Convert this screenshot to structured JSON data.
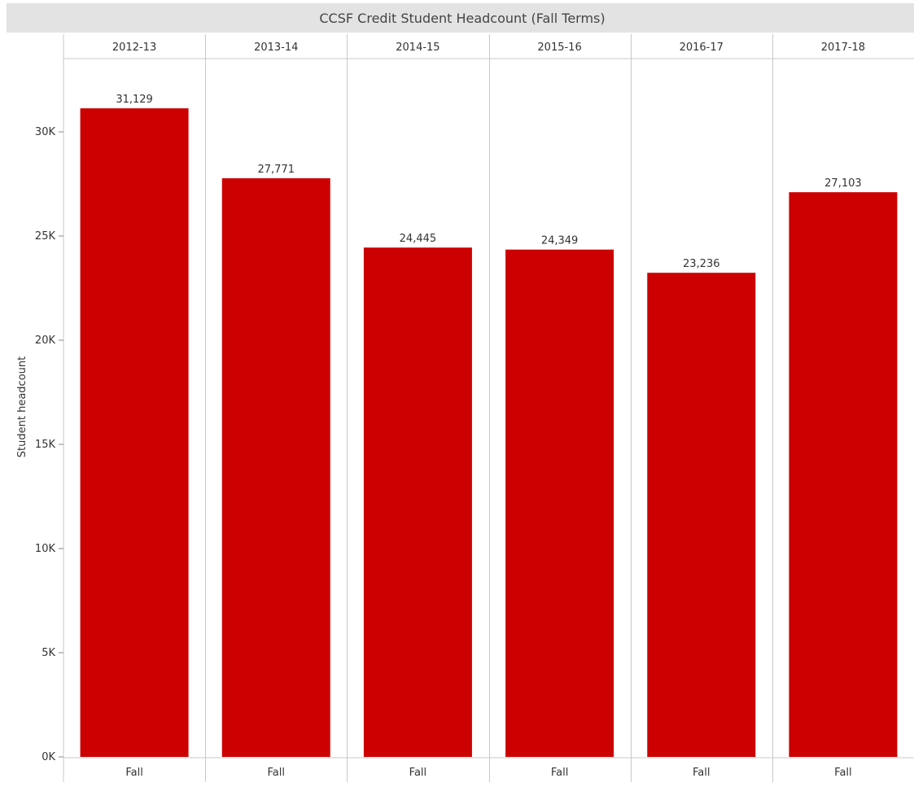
{
  "chart_data": {
    "type": "bar",
    "title": "CCSF Credit Student Headcount (Fall Terms)",
    "ylabel": "Student headcount",
    "xlabel": "",
    "categories": [
      "2012-13",
      "2013-14",
      "2014-15",
      "2015-16",
      "2016-17",
      "2017-18"
    ],
    "sub_category_label": "Fall",
    "values": [
      31129,
      27771,
      24445,
      24349,
      23236,
      27103
    ],
    "value_labels": [
      "31,129",
      "27,771",
      "24,445",
      "24,349",
      "23,236",
      "27,103"
    ],
    "ylim": [
      0,
      35000
    ],
    "y_ticks": [
      0,
      5000,
      10000,
      15000,
      20000,
      25000,
      30000
    ],
    "y_tick_labels": [
      "0K",
      "5K",
      "10K",
      "15K",
      "20K",
      "25K",
      "30K"
    ],
    "grid": false,
    "legend": "none",
    "colors": {
      "bar": "#cc0000",
      "title_band": "#e3e3e3",
      "divider": "#c8c8c8",
      "text": "#333333"
    }
  }
}
